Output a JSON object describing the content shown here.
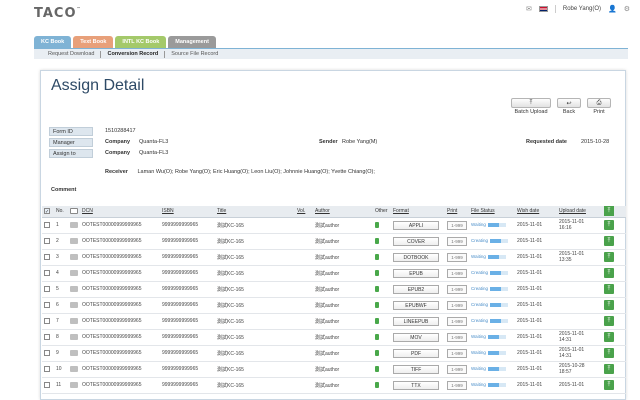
{
  "app": {
    "logo": "TACO",
    "user_name": "Robe Yang(O)"
  },
  "tabs": [
    {
      "label": "KC Book"
    },
    {
      "label": "Text Book"
    },
    {
      "label": "INTL KC Book"
    },
    {
      "label": "Management"
    }
  ],
  "subnav": [
    {
      "label": "Request Download"
    },
    {
      "label": "Conversion Record"
    },
    {
      "label": "Source File Record"
    }
  ],
  "page": {
    "title": "Assign Detail"
  },
  "toolbar": {
    "batch_upload": "Batch Upload",
    "back": "Back",
    "print": "Print"
  },
  "info": {
    "form_id_key": "Form ID",
    "form_id": "1510288417",
    "manager_key": "Manager",
    "company_label": "Company",
    "manager_company": "Quanta-FL3",
    "sender_label": "Sender",
    "sender": "Robe Yang(M)",
    "requested_date_label": "Requested date",
    "requested_date": "2015-10-28",
    "assign_to_key": "Assign to",
    "assign_company": "Quanta-FL3",
    "receiver_label": "Receiver",
    "receiver": "Laman Wu(O); Robe Yang(O); Eric Huang(O); Leon Liu(O); Johnnie Huang(O); Yvette Chiang(O);",
    "comment_label": "Comment"
  },
  "table": {
    "headers": {
      "no": "No.",
      "dcn": "DCN",
      "isbn": "ISBN",
      "title": "Title",
      "vol": "Vol.",
      "author": "Author",
      "other": "Other",
      "format": "Format",
      "print": "Print",
      "file_status": "File Status",
      "wish_date": "Wish date",
      "upload_date": "Upload date"
    },
    "rows": [
      {
        "no": "1",
        "dcn": "OOTEST00000999999965",
        "isbn": "9999999999965",
        "title": "測試KC-165",
        "author": "測試author",
        "format": "APPLI",
        "print": "1-999",
        "status": "Waiting",
        "wish": "2015-11-01",
        "up_date": "2015-11-01",
        "up_time": "16:16"
      },
      {
        "no": "2",
        "dcn": "OOTEST00000999999965",
        "isbn": "9999999999965",
        "title": "測試KC-165",
        "author": "測試author",
        "format": "COVER",
        "print": "1-999",
        "status": "Creating",
        "wish": "2015-11-01",
        "up_date": "",
        "up_time": ""
      },
      {
        "no": "3",
        "dcn": "OOTEST00000999999965",
        "isbn": "9999999999965",
        "title": "測試KC-165",
        "author": "測試author",
        "format": "DOTBOOK",
        "print": "1-999",
        "status": "Waiting",
        "wish": "2015-11-01",
        "up_date": "2015-11-01",
        "up_time": "13:35"
      },
      {
        "no": "4",
        "dcn": "OOTEST00000999999965",
        "isbn": "9999999999965",
        "title": "測試KC-165",
        "author": "測試author",
        "format": "EPUB",
        "print": "1-999",
        "status": "Creating",
        "wish": "2015-11-01",
        "up_date": "",
        "up_time": ""
      },
      {
        "no": "5",
        "dcn": "OOTEST00000999999965",
        "isbn": "9999999999965",
        "title": "測試KC-165",
        "author": "測試author",
        "format": "EPUB2",
        "print": "1-999",
        "status": "Creating",
        "wish": "2015-11-01",
        "up_date": "",
        "up_time": ""
      },
      {
        "no": "6",
        "dcn": "OOTEST00000999999965",
        "isbn": "9999999999965",
        "title": "測試KC-165",
        "author": "測試author",
        "format": "EPUBWF",
        "print": "1-999",
        "status": "Creating",
        "wish": "2015-11-01",
        "up_date": "",
        "up_time": ""
      },
      {
        "no": "7",
        "dcn": "OOTEST00000999999965",
        "isbn": "9999999999965",
        "title": "測試KC-165",
        "author": "測試author",
        "format": "LINEEPUB",
        "print": "1-999",
        "status": "Creating",
        "wish": "2015-11-01",
        "up_date": "",
        "up_time": ""
      },
      {
        "no": "8",
        "dcn": "OOTEST00000999999965",
        "isbn": "9999999999965",
        "title": "測試KC-165",
        "author": "測試author",
        "format": "MOV",
        "print": "1-999",
        "status": "Waiting",
        "wish": "2015-11-01",
        "up_date": "2015-11-01",
        "up_time": "14:31"
      },
      {
        "no": "9",
        "dcn": "OOTEST00000999999965",
        "isbn": "9999999999965",
        "title": "測試KC-165",
        "author": "測試author",
        "format": "PDF",
        "print": "1-999",
        "status": "Waiting",
        "wish": "2015-11-01",
        "up_date": "2015-11-01",
        "up_time": "14:31"
      },
      {
        "no": "10",
        "dcn": "OOTEST00000999999965",
        "isbn": "9999999999965",
        "title": "測試KC-165",
        "author": "測試author",
        "format": "TIFF",
        "print": "1-999",
        "status": "Waiting",
        "wish": "2015-11-01",
        "up_date": "2015-10-28",
        "up_time": "18:57"
      },
      {
        "no": "11",
        "dcn": "OOTEST00000999999965",
        "isbn": "9999999999965",
        "title": "測試KC-165",
        "author": "測試author",
        "format": "TTX",
        "print": "1-999",
        "status": "Waiting",
        "wish": "2015-11-01",
        "up_date": "2015-11-01",
        "up_time": ""
      }
    ]
  }
}
